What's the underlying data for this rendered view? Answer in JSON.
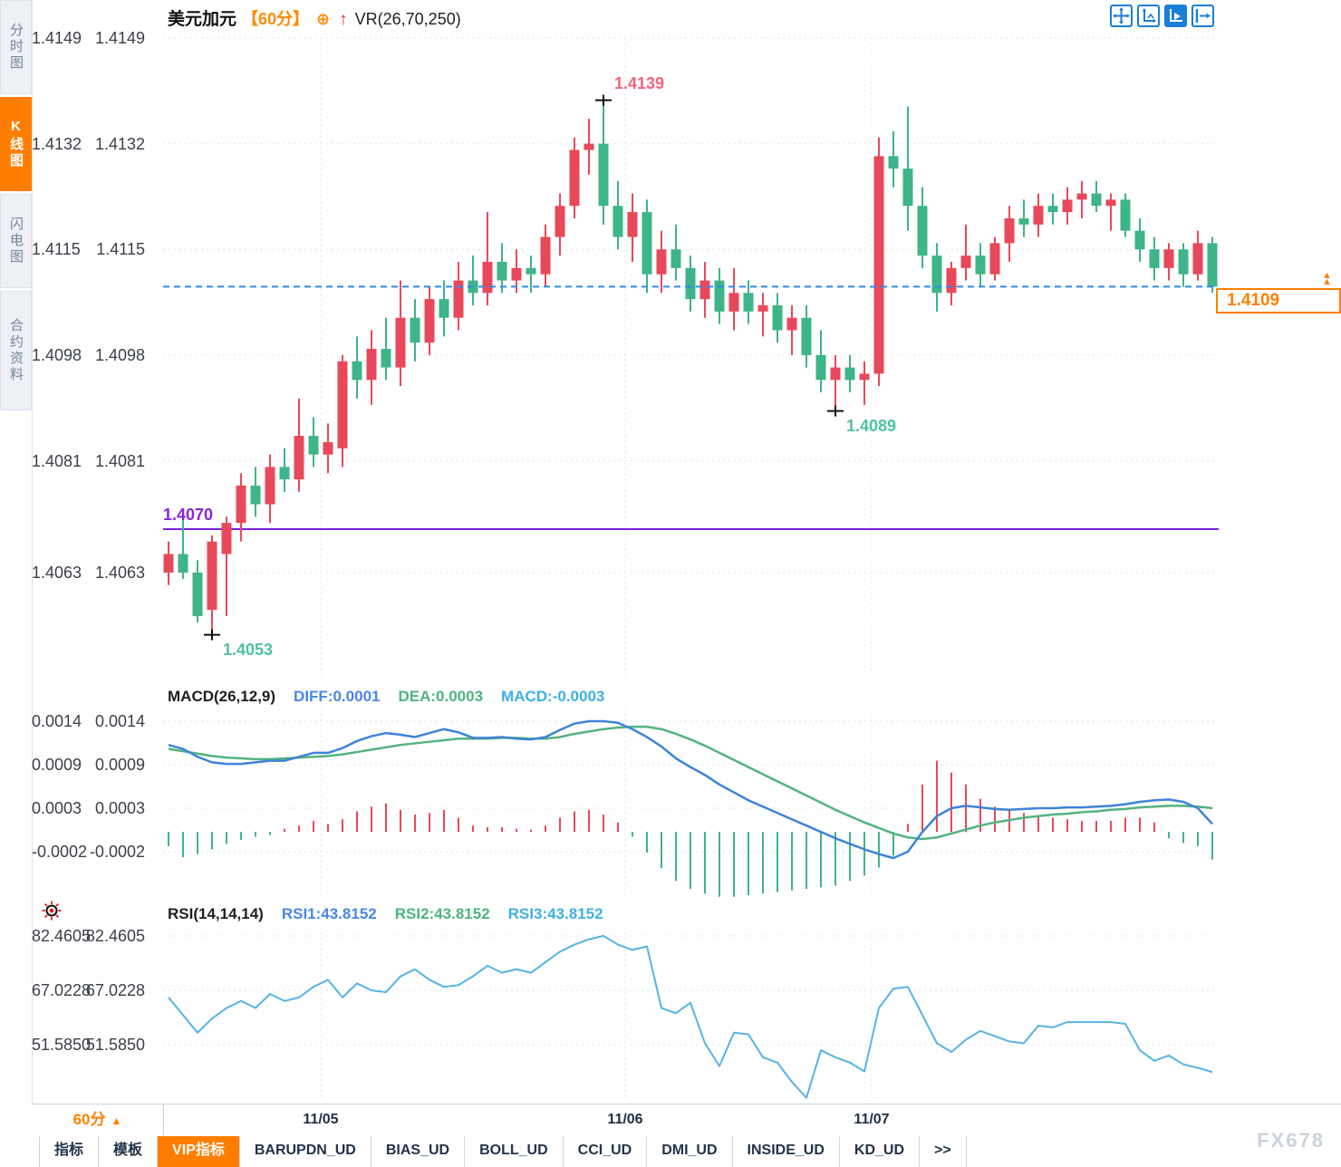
{
  "header": {
    "symbol": "美元加元",
    "period": "【60分】",
    "indicator": "VR(26,70,250)",
    "icons": {
      "circle_plus": "⊕",
      "up_arrow": "↑",
      "period_marker": "▲",
      "badge_marker": "▲"
    }
  },
  "sidebar": {
    "items": [
      {
        "label": "分时图",
        "active": false
      },
      {
        "label": "K线图",
        "active": true
      },
      {
        "label": "闪电图",
        "active": false
      },
      {
        "label": "合约资料",
        "active": false
      }
    ]
  },
  "toolbar": {
    "icons": [
      "move-crosshair-icon",
      "axis-scale-icon",
      "axis-auto-icon",
      "collapse-panel-icon"
    ],
    "active_index": 2
  },
  "price_axis": {
    "ticks": [
      {
        "v": 1.4149,
        "label": "1.4149"
      },
      {
        "v": 1.4132,
        "label": "1.4132"
      },
      {
        "v": 1.4115,
        "label": "1.4115"
      },
      {
        "v": 1.4098,
        "label": "1.4098"
      },
      {
        "v": 1.4081,
        "label": "1.4081"
      },
      {
        "v": 1.4063,
        "label": "1.4063"
      }
    ]
  },
  "macd_axis": {
    "ticks": [
      {
        "v": 0.0014,
        "label": "0.0014"
      },
      {
        "v": 0.00085,
        "label": "0.0009"
      },
      {
        "v": 0.0003,
        "label": "0.0003"
      },
      {
        "v": -0.00025,
        "label": "-0.0002"
      }
    ]
  },
  "rsi_axis": {
    "ticks": [
      {
        "v": 82.4605,
        "label": "82.4605"
      },
      {
        "v": 67.0228,
        "label": "67.0228"
      },
      {
        "v": 51.585,
        "label": "51.5850"
      }
    ]
  },
  "macd_header": {
    "title": "MACD(26,12,9)",
    "diff": "DIFF:0.0001",
    "dea": "DEA:0.0003",
    "macd": "MACD:-0.0003"
  },
  "rsi_header": {
    "title": "RSI(14,14,14)",
    "rsi1": "RSI1:43.8152",
    "rsi2": "RSI2:43.8152",
    "rsi3": "RSI3:43.8152"
  },
  "current_price": {
    "label": "1.4109",
    "price": 1.4109
  },
  "level_line": {
    "label": "1.4070",
    "price": 1.407
  },
  "x_axis": {
    "period_label": "60分",
    "dates": [
      {
        "label": "11/05",
        "index": 11
      },
      {
        "label": "11/06",
        "index": 32
      },
      {
        "label": "11/07",
        "index": 49
      }
    ]
  },
  "bottom_tabs": [
    {
      "label": "指标",
      "active": false
    },
    {
      "label": "模板",
      "active": false
    },
    {
      "label": "VIP指标",
      "active": true
    },
    {
      "label": "BARUPDN_UD",
      "active": false
    },
    {
      "label": "BIAS_UD",
      "active": false
    },
    {
      "label": "BOLL_UD",
      "active": false
    },
    {
      "label": "CCI_UD",
      "active": false
    },
    {
      "label": "DMI_UD",
      "active": false
    },
    {
      "label": "INSIDE_UD",
      "active": false
    },
    {
      "label": "KD_UD",
      "active": false
    },
    {
      "label": ">>",
      "active": false
    }
  ],
  "watermark": "FX678",
  "colors": {
    "accent_orange": "#ff7e00",
    "candle_up": "#e8495a",
    "candle_down": "#3eb489",
    "diff_line": "#3f83d8",
    "dea_line": "#54b37e",
    "rsi_line": "#56b3e5",
    "dashed_price_line": "#2e8be6",
    "level_line": "#7b1fd8",
    "high_label": "#f2647c",
    "low_label": "#4fc3a1",
    "cross_marker": "#111111",
    "grid": "#e2e6ea",
    "icon_blue": "#1b7fd4"
  },
  "chart_data": [
    {
      "type": "candlestick",
      "title": "美元加元 60分 K线",
      "ylim": [
        1.40451,
        1.415
      ],
      "ohlc": [
        [
          1.4063,
          1.4068,
          1.4061,
          1.4066
        ],
        [
          1.4066,
          1.4073,
          1.4062,
          1.4063
        ],
        [
          1.4063,
          1.4065,
          1.4055,
          1.4056
        ],
        [
          1.4057,
          1.4069,
          1.4053,
          1.4068
        ],
        [
          1.4066,
          1.4072,
          1.4056,
          1.4071
        ],
        [
          1.4071,
          1.4079,
          1.4068,
          1.4077
        ],
        [
          1.4077,
          1.408,
          1.4072,
          1.4074
        ],
        [
          1.4074,
          1.4082,
          1.4071,
          1.408
        ],
        [
          1.408,
          1.4083,
          1.4076,
          1.4078
        ],
        [
          1.4078,
          1.4091,
          1.4076,
          1.4085
        ],
        [
          1.4085,
          1.4088,
          1.408,
          1.4082
        ],
        [
          1.4082,
          1.4087,
          1.4079,
          1.4084
        ],
        [
          1.4083,
          1.4098,
          1.408,
          1.4097
        ],
        [
          1.4097,
          1.4101,
          1.4091,
          1.4094
        ],
        [
          1.4094,
          1.4102,
          1.409,
          1.4099
        ],
        [
          1.4099,
          1.4104,
          1.4094,
          1.4096
        ],
        [
          1.4096,
          1.411,
          1.4093,
          1.4104
        ],
        [
          1.4104,
          1.4107,
          1.4097,
          1.41
        ],
        [
          1.41,
          1.4109,
          1.4098,
          1.4107
        ],
        [
          1.4107,
          1.411,
          1.4101,
          1.4104
        ],
        [
          1.4104,
          1.4113,
          1.4102,
          1.411
        ],
        [
          1.411,
          1.4114,
          1.4106,
          1.4108
        ],
        [
          1.4108,
          1.4121,
          1.4106,
          1.4113
        ],
        [
          1.4113,
          1.4116,
          1.4108,
          1.411
        ],
        [
          1.411,
          1.4115,
          1.4108,
          1.4112
        ],
        [
          1.4112,
          1.4114,
          1.4108,
          1.4111
        ],
        [
          1.4111,
          1.4119,
          1.4109,
          1.4117
        ],
        [
          1.4117,
          1.4124,
          1.4114,
          1.4122
        ],
        [
          1.4122,
          1.4133,
          1.412,
          1.4131
        ],
        [
          1.4131,
          1.4136,
          1.4127,
          1.4132
        ],
        [
          1.4132,
          1.4139,
          1.4119,
          1.4122
        ],
        [
          1.4122,
          1.4126,
          1.4115,
          1.4117
        ],
        [
          1.4117,
          1.4124,
          1.4113,
          1.4121
        ],
        [
          1.4121,
          1.4123,
          1.4108,
          1.4111
        ],
        [
          1.4111,
          1.4118,
          1.4108,
          1.4115
        ],
        [
          1.4115,
          1.4119,
          1.411,
          1.4112
        ],
        [
          1.4112,
          1.4114,
          1.4105,
          1.4107
        ],
        [
          1.4107,
          1.4113,
          1.4104,
          1.411
        ],
        [
          1.411,
          1.4112,
          1.4103,
          1.4105
        ],
        [
          1.4105,
          1.4112,
          1.4102,
          1.4108
        ],
        [
          1.4108,
          1.411,
          1.4103,
          1.4105
        ],
        [
          1.4105,
          1.4108,
          1.4101,
          1.4106
        ],
        [
          1.4106,
          1.4108,
          1.41,
          1.4102
        ],
        [
          1.4102,
          1.4106,
          1.4098,
          1.4104
        ],
        [
          1.4104,
          1.4106,
          1.4096,
          1.4098
        ],
        [
          1.4098,
          1.4102,
          1.4092,
          1.4094
        ],
        [
          1.4094,
          1.4098,
          1.4089,
          1.4096
        ],
        [
          1.4096,
          1.4098,
          1.4092,
          1.4094
        ],
        [
          1.4094,
          1.4097,
          1.409,
          1.4095
        ],
        [
          1.4095,
          1.4133,
          1.4093,
          1.413
        ],
        [
          1.413,
          1.4134,
          1.4125,
          1.4128
        ],
        [
          1.4128,
          1.4138,
          1.4118,
          1.4122
        ],
        [
          1.4122,
          1.4125,
          1.4112,
          1.4114
        ],
        [
          1.4114,
          1.4116,
          1.4105,
          1.4108
        ],
        [
          1.4108,
          1.4113,
          1.4106,
          1.4112
        ],
        [
          1.4112,
          1.4119,
          1.411,
          1.4114
        ],
        [
          1.4114,
          1.4116,
          1.4109,
          1.4111
        ],
        [
          1.4111,
          1.4117,
          1.411,
          1.4116
        ],
        [
          1.4116,
          1.4122,
          1.4113,
          1.412
        ],
        [
          1.412,
          1.4123,
          1.4117,
          1.4119
        ],
        [
          1.4119,
          1.4124,
          1.4117,
          1.4122
        ],
        [
          1.4122,
          1.4124,
          1.4119,
          1.4121
        ],
        [
          1.4121,
          1.4125,
          1.4119,
          1.4123
        ],
        [
          1.4123,
          1.4126,
          1.412,
          1.4124
        ],
        [
          1.4124,
          1.4126,
          1.4121,
          1.4122
        ],
        [
          1.4122,
          1.4124,
          1.4118,
          1.4123
        ],
        [
          1.4123,
          1.4124,
          1.4117,
          1.4118
        ],
        [
          1.4118,
          1.412,
          1.4113,
          1.4115
        ],
        [
          1.4115,
          1.4117,
          1.411,
          1.4112
        ],
        [
          1.4112,
          1.4116,
          1.411,
          1.4115
        ],
        [
          1.4115,
          1.4116,
          1.4109,
          1.4111
        ],
        [
          1.4111,
          1.4118,
          1.411,
          1.4116
        ],
        [
          1.4116,
          1.4117,
          1.4108,
          1.4109
        ]
      ],
      "annotations": [
        {
          "label": "1.4139",
          "index": 30,
          "anchor": "high"
        },
        {
          "label": "1.4089",
          "index": 46,
          "anchor": "low"
        },
        {
          "label": "1.4053",
          "index": 3,
          "anchor": "low"
        }
      ]
    },
    {
      "type": "macd",
      "title": "MACD(26,12,9)",
      "ylim": [
        -0.00085,
        0.00156
      ],
      "diff": [
        0.0011,
        0.00105,
        0.00095,
        0.00088,
        0.00086,
        0.00086,
        0.00088,
        0.0009,
        0.0009,
        0.00095,
        0.001,
        0.001,
        0.00106,
        0.00115,
        0.00121,
        0.00125,
        0.00123,
        0.0012,
        0.00125,
        0.0013,
        0.00126,
        0.00119,
        0.00119,
        0.0012,
        0.00118,
        0.00117,
        0.0012,
        0.00129,
        0.00137,
        0.0014,
        0.0014,
        0.00138,
        0.0013,
        0.0012,
        0.00108,
        0.00093,
        0.00082,
        0.00072,
        0.0006,
        0.0005,
        0.0004,
        0.00032,
        0.00024,
        0.00016,
        8e-05,
        0.0,
        -8e-05,
        -0.00015,
        -0.00022,
        -0.00028,
        -0.00033,
        -0.00025,
        0.0,
        0.0002,
        0.0003,
        0.00033,
        0.00031,
        0.00029,
        0.00028,
        0.00029,
        0.0003,
        0.0003,
        0.00031,
        0.00031,
        0.00032,
        0.00033,
        0.00035,
        0.00038,
        0.0004,
        0.00041,
        0.00038,
        0.0003,
        0.0001
      ],
      "dea": [
        0.00105,
        0.00102,
        0.00099,
        0.00096,
        0.00094,
        0.00093,
        0.00092,
        0.00092,
        0.00093,
        0.00094,
        0.00095,
        0.00096,
        0.00098,
        0.00101,
        0.00104,
        0.00107,
        0.0011,
        0.00112,
        0.00114,
        0.00116,
        0.00118,
        0.00118,
        0.00118,
        0.00119,
        0.00119,
        0.00118,
        0.00118,
        0.0012,
        0.00124,
        0.00127,
        0.0013,
        0.00132,
        0.00133,
        0.00133,
        0.0013,
        0.00124,
        0.00117,
        0.00109,
        0.001,
        0.00091,
        0.00082,
        0.00073,
        0.00064,
        0.00055,
        0.00046,
        0.00037,
        0.00028,
        0.0002,
        0.00012,
        5e-05,
        -2e-05,
        -7e-05,
        -9e-05,
        -7e-05,
        -2e-05,
        3e-05,
        8e-05,
        0.00012,
        0.00015,
        0.00018,
        0.0002,
        0.00022,
        0.00023,
        0.00025,
        0.00026,
        0.00028,
        0.00029,
        0.00031,
        0.00032,
        0.00033,
        0.00033,
        0.00032,
        0.0003
      ],
      "hist": [
        -0.00018,
        -0.00032,
        -0.00028,
        -0.00022,
        -0.00015,
        -0.0001,
        -6e-05,
        -4e-05,
        4e-05,
        8e-05,
        0.00014,
        0.0001,
        0.00016,
        0.00026,
        0.00032,
        0.00036,
        0.00028,
        0.00022,
        0.00024,
        0.00028,
        0.00018,
        8e-05,
        6e-05,
        6e-05,
        4e-05,
        3e-05,
        8e-05,
        0.00018,
        0.00026,
        0.00028,
        0.00022,
        0.00012,
        -6e-05,
        -0.00026,
        -0.00046,
        -0.00062,
        -0.00072,
        -0.00078,
        -0.00082,
        -0.00082,
        -0.0008,
        -0.00078,
        -0.00076,
        -0.00074,
        -0.00072,
        -0.0007,
        -0.00068,
        -0.00062,
        -0.00055,
        -0.00045,
        -0.0003,
        0.0001,
        0.0006,
        0.0009,
        0.00075,
        0.0006,
        0.00042,
        0.00032,
        0.00028,
        0.00024,
        0.0002,
        0.00018,
        0.00016,
        0.00014,
        0.00014,
        0.00014,
        0.00018,
        0.00018,
        0.00012,
        -8e-05,
        -0.00014,
        -0.00018,
        -0.00035
      ]
    },
    {
      "type": "line",
      "title": "RSI(14,14,14)",
      "ylim": [
        36.15,
        85.81
      ],
      "values": [
        65,
        60,
        55,
        59,
        62,
        64,
        62,
        66,
        64,
        65,
        68,
        70,
        65,
        69,
        67,
        66.5,
        71,
        73,
        70,
        68,
        68.5,
        71,
        74,
        72,
        73,
        72,
        75,
        78,
        80,
        81.5,
        82.5,
        80,
        78.5,
        79.5,
        62,
        60.5,
        63.5,
        52,
        45.5,
        55,
        54.5,
        48,
        46.5,
        41,
        36.5,
        50,
        48,
        46.5,
        44,
        62,
        67.5,
        68,
        60,
        52,
        49.5,
        53,
        55.5,
        54,
        52.5,
        52,
        57,
        56.5,
        58,
        58,
        58,
        58,
        57.5,
        50,
        47,
        48.5,
        46,
        45,
        43.8
      ]
    }
  ]
}
